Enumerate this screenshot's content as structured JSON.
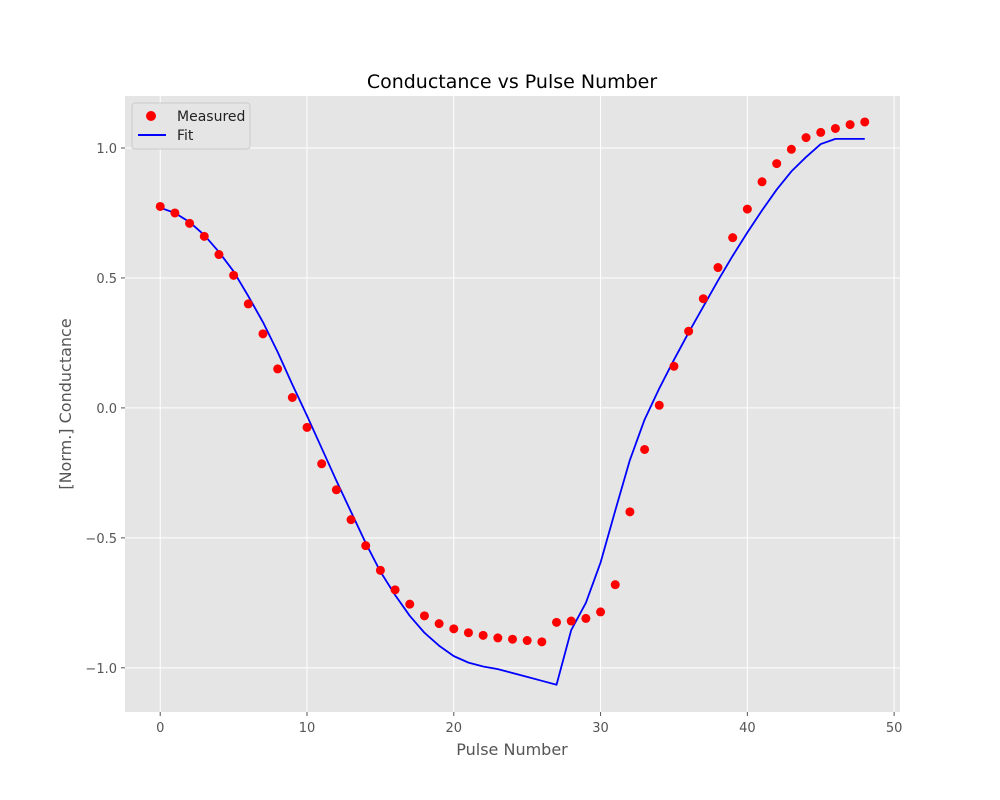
{
  "chart_data": {
    "type": "scatter",
    "title": "Conductance vs Pulse Number",
    "xlabel": "Pulse Number",
    "ylabel": "[Norm.] Conductance",
    "xlim": [
      -2.4,
      50.4
    ],
    "ylim": [
      -1.17,
      1.2
    ],
    "xticks": [
      0,
      10,
      20,
      30,
      40,
      50
    ],
    "xtick_labels": [
      "0",
      "10",
      "20",
      "30",
      "40",
      "50"
    ],
    "yticks": [
      -1.0,
      -0.5,
      0.0,
      0.5,
      1.0
    ],
    "ytick_labels": [
      "−1.0",
      "−0.5",
      "0.0",
      "0.5",
      "1.0"
    ],
    "grid": true,
    "legend": "top-left",
    "colors": {
      "background": "#e5e5e5",
      "grid": "#ffffff",
      "measured": "#ff0000",
      "fit": "#0000ff"
    },
    "series": [
      {
        "name": "Measured",
        "kind": "scatter",
        "x": [
          0,
          1,
          2,
          3,
          4,
          5,
          6,
          7,
          8,
          9,
          10,
          11,
          12,
          13,
          14,
          15,
          16,
          17,
          18,
          19,
          20,
          21,
          22,
          23,
          24,
          25,
          26,
          27,
          28,
          29,
          30,
          31,
          32,
          33,
          34,
          35,
          36,
          37,
          38,
          39,
          40,
          41,
          42,
          43,
          44,
          45,
          46,
          47,
          48
        ],
        "y": [
          0.775,
          0.75,
          0.71,
          0.66,
          0.59,
          0.51,
          0.4,
          0.285,
          0.15,
          0.04,
          -0.075,
          -0.215,
          -0.315,
          -0.43,
          -0.53,
          -0.625,
          -0.7,
          -0.755,
          -0.8,
          -0.83,
          -0.85,
          -0.865,
          -0.875,
          -0.885,
          -0.89,
          -0.895,
          -0.9,
          -0.825,
          -0.82,
          -0.81,
          -0.785,
          -0.68,
          -0.4,
          -0.16,
          0.01,
          0.16,
          0.295,
          0.42,
          0.54,
          0.655,
          0.765,
          0.87,
          0.94,
          0.995,
          1.04,
          1.06,
          1.075,
          1.09,
          1.1
        ]
      },
      {
        "name": "Fit",
        "kind": "line",
        "x": [
          0,
          1,
          2,
          3,
          4,
          5,
          6,
          7,
          8,
          9,
          10,
          11,
          12,
          13,
          14,
          15,
          16,
          17,
          18,
          19,
          20,
          21,
          22,
          23,
          24,
          25,
          26,
          27,
          28,
          29,
          30,
          31,
          32,
          33,
          34,
          35,
          36,
          37,
          38,
          39,
          40,
          41,
          42,
          43,
          44,
          45,
          46,
          47,
          48
        ],
        "y": [
          0.77,
          0.75,
          0.715,
          0.665,
          0.6,
          0.525,
          0.43,
          0.33,
          0.215,
          0.09,
          -0.03,
          -0.155,
          -0.28,
          -0.4,
          -0.52,
          -0.63,
          -0.72,
          -0.8,
          -0.865,
          -0.915,
          -0.955,
          -0.98,
          -0.995,
          -1.005,
          -1.02,
          -1.035,
          -1.05,
          -1.065,
          -0.855,
          -0.75,
          -0.595,
          -0.395,
          -0.2,
          -0.045,
          0.075,
          0.185,
          0.29,
          0.39,
          0.49,
          0.585,
          0.675,
          0.76,
          0.84,
          0.91,
          0.965,
          1.015,
          1.035,
          1.035,
          1.035
        ]
      }
    ]
  }
}
